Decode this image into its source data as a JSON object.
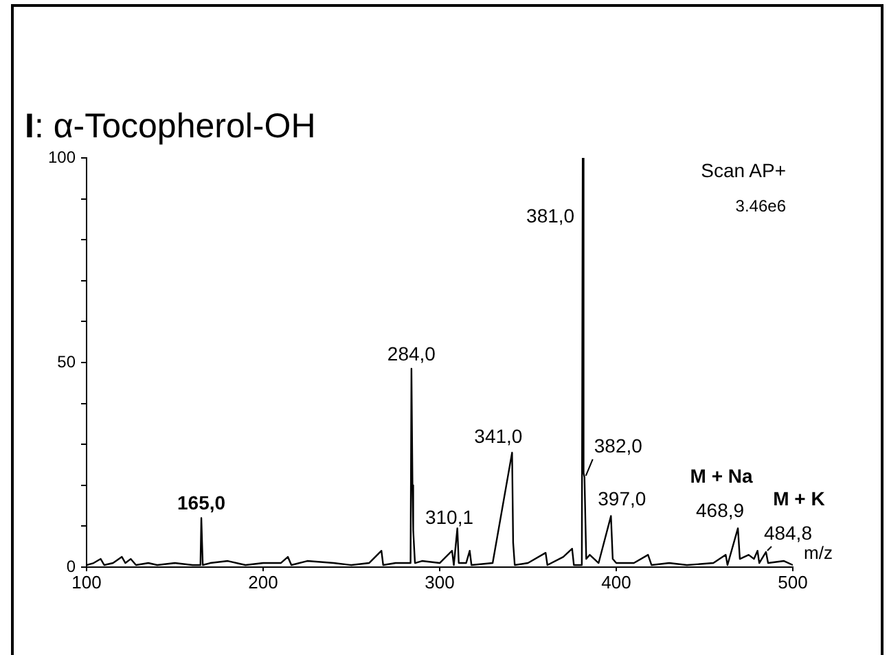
{
  "chart_data": {
    "type": "line",
    "title": "I: α-Tocopherol-OH",
    "xlabel": "m/z",
    "color": "#000000",
    "marker": "none",
    "grid": false,
    "x": [
      100,
      104,
      108,
      110,
      115,
      120,
      122,
      125,
      128,
      135,
      140,
      150,
      160,
      164.5,
      165,
      165.8,
      170,
      180,
      190,
      200,
      210,
      214,
      216,
      225,
      240,
      250,
      260,
      267,
      268,
      275,
      283.5,
      284,
      284.6,
      285,
      286,
      290,
      300,
      307,
      308,
      310,
      310.8,
      315,
      317,
      318,
      330,
      341,
      341.6,
      342.5,
      350,
      360,
      361,
      370,
      375,
      376,
      380.5,
      381,
      381.5,
      382,
      383,
      385,
      390,
      397,
      398,
      400,
      410,
      418,
      420,
      430,
      440,
      455,
      462,
      463,
      468.9,
      470,
      475,
      478,
      480,
      481,
      484.8,
      486,
      495,
      500
    ],
    "values": [
      0.5,
      1,
      2,
      0.5,
      1,
      2.5,
      1,
      2,
      0.5,
      1,
      0.5,
      1,
      0.5,
      0.5,
      12,
      0.5,
      1,
      1.5,
      0.5,
      1,
      1,
      2.5,
      0.5,
      1.5,
      1,
      0.5,
      1,
      4,
      0.5,
      1,
      1,
      48.5,
      20,
      9,
      1,
      1.5,
      1,
      4,
      0.5,
      9.5,
      1,
      1,
      4,
      0.5,
      1,
      28,
      6,
      0.5,
      1,
      3.5,
      0.5,
      2.5,
      4.5,
      0.5,
      0.5,
      100,
      23,
      22,
      2,
      3,
      1,
      12.5,
      2,
      1,
      1,
      3,
      0.5,
      1,
      0.5,
      1,
      3,
      0.5,
      9.5,
      2,
      3,
      2,
      4,
      1,
      3.7,
      1,
      1.5,
      0.5
    ],
    "xlim": [
      100,
      500
    ],
    "xticks": [
      100,
      200,
      300,
      400,
      500
    ],
    "ylim": [
      0,
      100
    ],
    "yticks": [
      0,
      {
        "value": 10,
        "label": null
      },
      {
        "value": 20,
        "label": null
      },
      {
        "value": 30,
        "label": null
      },
      {
        "value": 40,
        "label": null
      },
      50,
      {
        "value": 60,
        "label": null
      },
      {
        "value": 70,
        "label": null
      },
      {
        "value": 80,
        "label": null
      },
      {
        "value": 90,
        "label": null
      },
      100
    ],
    "annotations": [
      "Scan AP+",
      "3.46e6",
      {
        "text": "165,0",
        "x": 165,
        "y": 12
      },
      {
        "text": "284,0",
        "x": 284,
        "y": 48.5
      },
      {
        "text": "310,1",
        "x": 310.1,
        "y": 9.5
      },
      {
        "text": "341,0",
        "x": 341,
        "y": 28
      },
      {
        "text": "381,0",
        "x": 381,
        "y": 100
      },
      {
        "text": "382,0",
        "x": 382,
        "y": 22
      },
      {
        "text": "397,0",
        "x": 397,
        "y": 12.5
      },
      {
        "text": "M + Na",
        "x": 468.9,
        "y": 9.5
      },
      {
        "text": "468,9",
        "x": 468.9,
        "y": 9.5
      },
      {
        "text": "M + K",
        "x": 484.8,
        "y": 3.7
      },
      {
        "text": "484,8",
        "x": 484.8,
        "y": 3.7
      }
    ]
  }
}
